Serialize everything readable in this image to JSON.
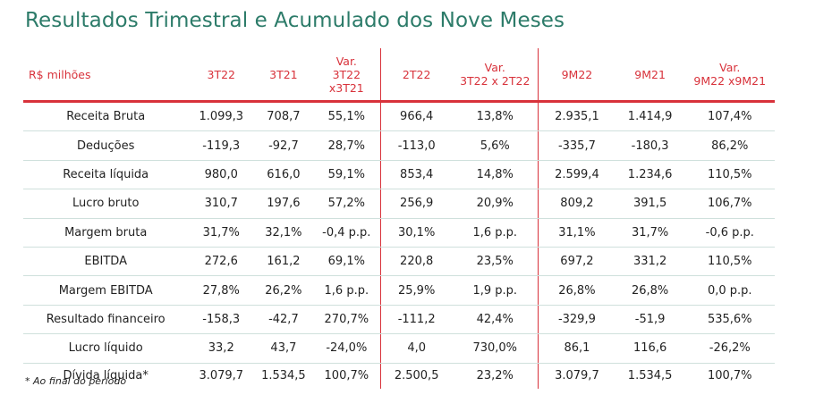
{
  "title": "Resultados Trimestral e Acumulado dos Nove Meses",
  "table": {
    "headers": [
      [
        "R$ milhões"
      ],
      [
        "3T22"
      ],
      [
        "3T21"
      ],
      [
        "Var.",
        "3T22",
        "x3T21"
      ],
      [
        "2T22"
      ],
      [
        "Var.",
        "3T22 x 2T22"
      ],
      [
        "9M22"
      ],
      [
        "9M21"
      ],
      [
        "Var.",
        "9M22 x9M21"
      ]
    ],
    "rows": [
      [
        "Receita Bruta",
        "1.099,3",
        "708,7",
        "55,1%",
        "966,4",
        "13,8%",
        "2.935,1",
        "1.414,9",
        "107,4%"
      ],
      [
        "Deduções",
        "-119,3",
        "-92,7",
        "28,7%",
        "-113,0",
        "5,6%",
        "-335,7",
        "-180,3",
        "86,2%"
      ],
      [
        "Receita líquida",
        "980,0",
        "616,0",
        "59,1%",
        "853,4",
        "14,8%",
        "2.599,4",
        "1.234,6",
        "110,5%"
      ],
      [
        "Lucro bruto",
        "310,7",
        "197,6",
        "57,2%",
        "256,9",
        "20,9%",
        "809,2",
        "391,5",
        "106,7%"
      ],
      [
        "Margem bruta",
        "31,7%",
        "32,1%",
        "-0,4 p.p.",
        "30,1%",
        "1,6 p.p.",
        "31,1%",
        "31,7%",
        "-0,6 p.p."
      ],
      [
        "EBITDA",
        "272,6",
        "161,2",
        "69,1%",
        "220,8",
        "23,5%",
        "697,2",
        "331,2",
        "110,5%"
      ],
      [
        "Margem EBITDA",
        "27,8%",
        "26,2%",
        "1,6 p.p.",
        "25,9%",
        "1,9 p.p.",
        "26,8%",
        "26,8%",
        "0,0 p.p."
      ],
      [
        "Resultado financeiro",
        "-158,3",
        "-42,7",
        "270,7%",
        "-111,2",
        "42,4%",
        "-329,9",
        "-51,9",
        "535,6%"
      ],
      [
        "Lucro líquido",
        "33,2",
        "43,7",
        "-24,0%",
        "4,0",
        "730,0%",
        "86,1",
        "116,6",
        "-26,2%"
      ],
      [
        "Dívida líquida*",
        "3.079,7",
        "1.534,5",
        "100,7%",
        "2.500,5",
        "23,2%",
        "3.079,7",
        "1.534,5",
        "100,7%"
      ]
    ]
  },
  "footnote": "* Ao final do período",
  "colors": {
    "title": "#2c7b69",
    "accent": "#d8323b"
  }
}
